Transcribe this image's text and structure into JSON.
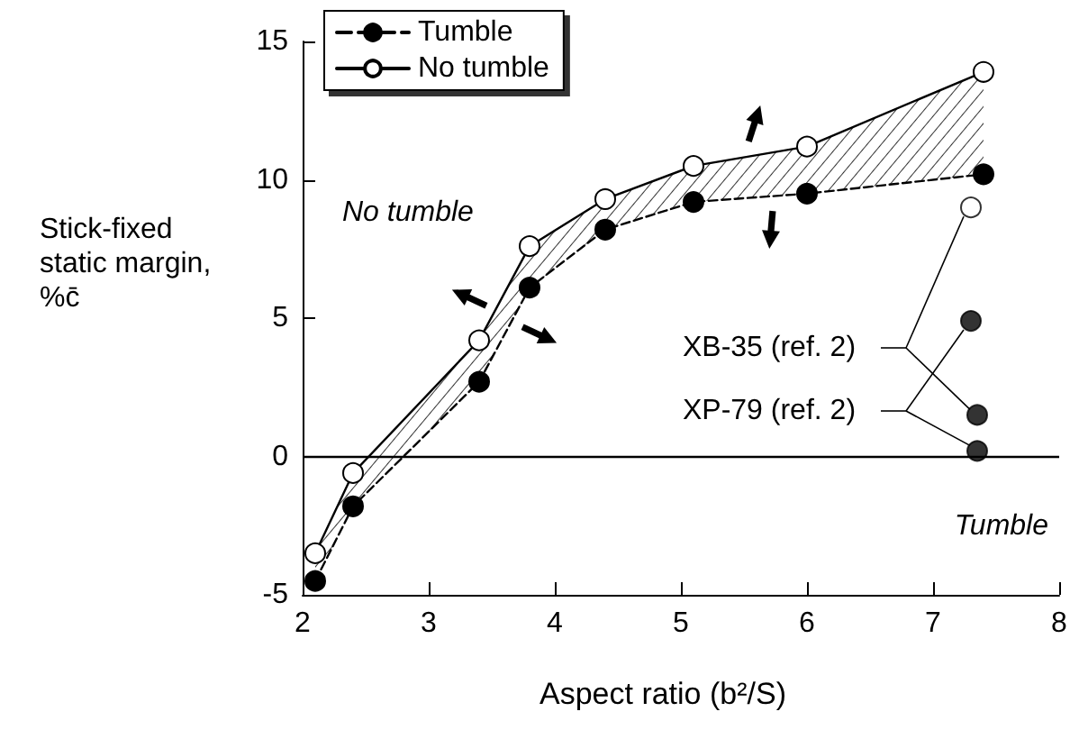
{
  "chart_data": {
    "type": "line",
    "xlabel": "Aspect ratio (b²/S)",
    "ylabel": "Stick-fixed\nstatic margin,\n%c̄",
    "xlim": [
      2,
      8
    ],
    "xticks": [
      2,
      3,
      4,
      5,
      6,
      7,
      8
    ],
    "ylim": [
      -5,
      15
    ],
    "yticks": [
      -5,
      0,
      5,
      10,
      15
    ],
    "legend": "top left",
    "grid": false,
    "ref_lines": [
      {
        "axis": "y",
        "value": 0
      }
    ],
    "annotations": [
      "XB-35 (ref. 2)",
      "XP-79 (ref. 2)",
      "No tumble",
      "Tumble"
    ],
    "series": [
      {
        "name": "Tumble",
        "color": "#000000",
        "marker": "circle",
        "line_style": "dashed",
        "x": [
          2.1,
          2.4,
          3.4,
          3.8,
          4.4,
          5.1,
          6.0,
          7.4
        ],
        "values": [
          -4.5,
          -1.8,
          2.7,
          6.1,
          8.2,
          9.2,
          9.5,
          10.2
        ]
      },
      {
        "name": "No tumble",
        "color": "#000000",
        "marker": "open circle",
        "line_style": "solid",
        "x": [
          2.1,
          2.4,
          3.4,
          3.8,
          4.4,
          5.1,
          6.0,
          7.4
        ],
        "values": [
          -3.5,
          -0.6,
          4.2,
          7.6,
          9.3,
          10.5,
          11.2,
          13.9
        ],
        "lower": [
          -4.5,
          -1.8,
          2.7,
          6.1,
          8.2,
          9.2,
          9.5,
          10.2
        ],
        "upper": [
          -3.5,
          -0.6,
          4.2,
          7.6,
          9.3,
          10.5,
          11.2,
          13.9
        ]
      },
      {
        "type": "scatter",
        "color": "#000000",
        "marker": "open circle",
        "x": [
          7.3
        ],
        "values": [
          9.0
        ]
      },
      {
        "type": "scatter",
        "color": "#000000",
        "marker": "circle",
        "x": [
          7.3,
          7.35,
          7.35
        ],
        "values": [
          4.9,
          1.5,
          0.2
        ]
      }
    ]
  }
}
